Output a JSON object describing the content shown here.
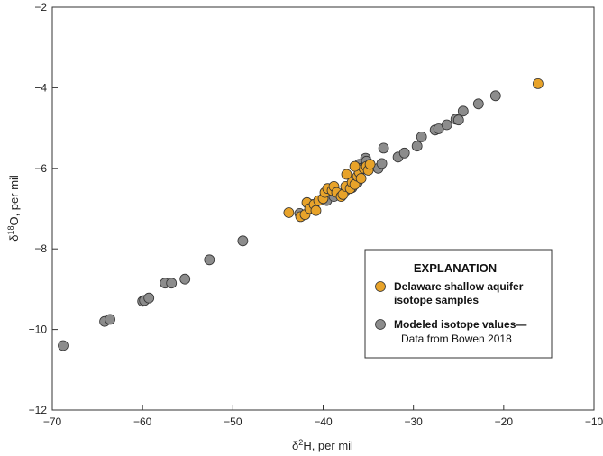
{
  "chart_data": {
    "type": "scatter",
    "xlabel_base": "δ",
    "xlabel_sup": "2",
    "xlabel_rest": "H, per mil",
    "ylabel_base": "δ",
    "ylabel_sup": "18",
    "ylabel_rest": "O, per mil",
    "xlim": [
      -70,
      -10
    ],
    "ylim": [
      -12,
      -2
    ],
    "xticks": [
      -70,
      -60,
      -50,
      -40,
      -30,
      -20,
      -10
    ],
    "yticks": [
      -12,
      -10,
      -8,
      -6,
      -4,
      -2
    ],
    "legend": {
      "title": "EXPLANATION",
      "placement": "lower-right",
      "entries": [
        {
          "lines": [
            "Delaware shallow aquifer",
            "isotope samples"
          ],
          "series_index": 0
        },
        {
          "lines": [
            "Modeled isotope values—",
            "Data from Bowen 2018"
          ],
          "series_index": 1
        }
      ]
    },
    "series": [
      {
        "name": "Delaware shallow aquifer isotope samples",
        "color": "#e8a32a",
        "points": [
          [
            -16.2,
            -3.9
          ],
          [
            -43.8,
            -7.1
          ],
          [
            -42.5,
            -7.2
          ],
          [
            -42.0,
            -7.15
          ],
          [
            -41.8,
            -6.85
          ],
          [
            -41.5,
            -7.0
          ],
          [
            -41.0,
            -6.9
          ],
          [
            -40.8,
            -7.05
          ],
          [
            -40.5,
            -6.8
          ],
          [
            -40.0,
            -6.75
          ],
          [
            -39.8,
            -6.6
          ],
          [
            -39.5,
            -6.5
          ],
          [
            -39.0,
            -6.55
          ],
          [
            -38.8,
            -6.45
          ],
          [
            -38.5,
            -6.6
          ],
          [
            -38.0,
            -6.7
          ],
          [
            -37.8,
            -6.65
          ],
          [
            -37.5,
            -6.45
          ],
          [
            -37.4,
            -6.15
          ],
          [
            -37.0,
            -6.5
          ],
          [
            -36.8,
            -6.35
          ],
          [
            -36.5,
            -6.4
          ],
          [
            -36.2,
            -6.2
          ],
          [
            -36.0,
            -6.1
          ],
          [
            -35.8,
            -6.25
          ],
          [
            -35.5,
            -6.0
          ],
          [
            -35.2,
            -5.95
          ],
          [
            -35.0,
            -6.05
          ],
          [
            -34.8,
            -5.9
          ],
          [
            -36.5,
            -5.95
          ]
        ]
      },
      {
        "name": "Modeled isotope values—Data from Bowen 2018",
        "color": "#8c8c8c",
        "points": [
          [
            -68.8,
            -10.4
          ],
          [
            -64.2,
            -9.8
          ],
          [
            -63.6,
            -9.75
          ],
          [
            -60.0,
            -9.3
          ],
          [
            -59.8,
            -9.28
          ],
          [
            -59.3,
            -9.22
          ],
          [
            -57.5,
            -8.85
          ],
          [
            -56.8,
            -8.85
          ],
          [
            -55.3,
            -8.75
          ],
          [
            -52.6,
            -8.27
          ],
          [
            -48.9,
            -7.8
          ],
          [
            -42.6,
            -7.12
          ],
          [
            -41.2,
            -6.9
          ],
          [
            -39.6,
            -6.8
          ],
          [
            -38.8,
            -6.7
          ],
          [
            -37.5,
            -6.55
          ],
          [
            -36.8,
            -6.48
          ],
          [
            -36.2,
            -6.35
          ],
          [
            -36.0,
            -5.9
          ],
          [
            -35.8,
            -6.0
          ],
          [
            -35.3,
            -5.75
          ],
          [
            -35.2,
            -5.82
          ],
          [
            -33.9,
            -6.0
          ],
          [
            -33.5,
            -5.88
          ],
          [
            -33.3,
            -5.5
          ],
          [
            -31.7,
            -5.72
          ],
          [
            -31.0,
            -5.62
          ],
          [
            -29.6,
            -5.45
          ],
          [
            -29.1,
            -5.22
          ],
          [
            -27.6,
            -5.05
          ],
          [
            -27.2,
            -5.02
          ],
          [
            -26.3,
            -4.92
          ],
          [
            -25.3,
            -4.78
          ],
          [
            -25.0,
            -4.8
          ],
          [
            -24.5,
            -4.58
          ],
          [
            -22.8,
            -4.4
          ],
          [
            -20.9,
            -4.2
          ]
        ]
      }
    ]
  }
}
